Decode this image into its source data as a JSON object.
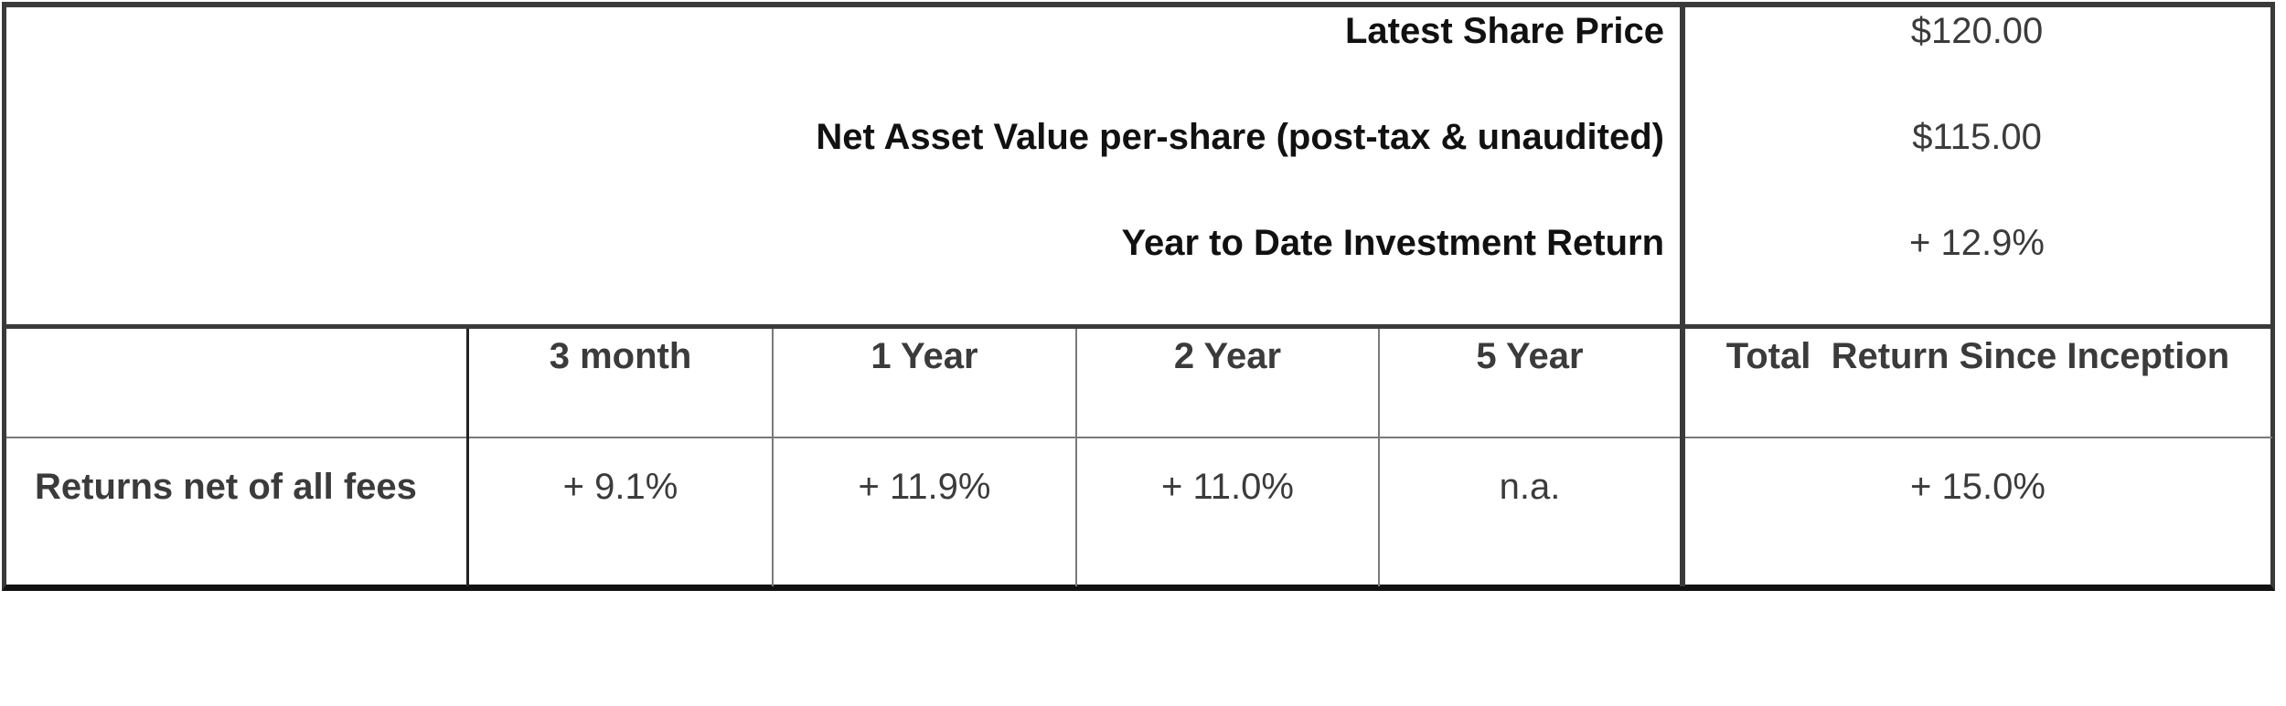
{
  "summary": {
    "rows": [
      {
        "label": "Latest Share Price",
        "value": "$120.00"
      },
      {
        "label": "Net Asset Value per-share (post-tax & unaudited)",
        "value": "$115.00"
      },
      {
        "label": "Year to Date Investment Return",
        "value": "+ 12.9%"
      }
    ]
  },
  "returns": {
    "headers": [
      "3 month",
      "1 Year",
      "2 Year",
      "5 Year",
      "Total  Return Since Inception"
    ],
    "row_label": "Returns net of all fees",
    "values": [
      "+ 9.1%",
      "+ 11.9%",
      "+ 11.0%",
      "n.a.",
      "+ 15.0%"
    ]
  }
}
